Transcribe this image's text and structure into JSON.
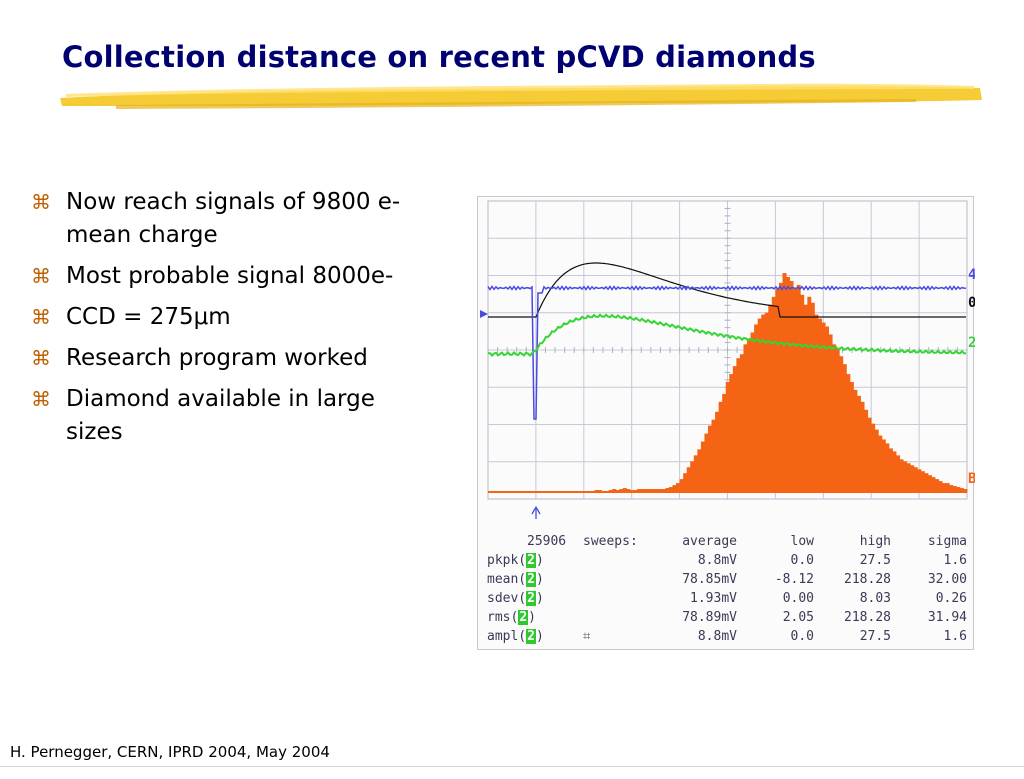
{
  "slide": {
    "title": "Collection distance on recent pCVD diamonds",
    "accent_color": "#f2c62c",
    "title_color": "#000070"
  },
  "bullets": {
    "marker_icon": "command-key-glyph",
    "items": [
      "Now reach signals of 9800 e- mean charge",
      "Most probable signal 8000e-",
      "CCD = 275μm",
      "Research program worked",
      "Diamond available in large sizes"
    ]
  },
  "scope": {
    "channel_markers": [
      "4",
      "0",
      "2",
      "B"
    ],
    "trace_colors": {
      "ch4": "#4a4ae0",
      "ch2": "#34d534",
      "ref": "#101010",
      "histogram": "#f46414"
    },
    "readout": {
      "header": [
        "25906",
        "sweeps:",
        "average",
        "low",
        "high",
        "sigma"
      ],
      "rows": [
        {
          "label": "pkpk(",
          "ch": "2",
          "close": ")",
          "avg": "8.8mV",
          "low": "0.0",
          "high": "27.5",
          "sigma": "1.6"
        },
        {
          "label": "mean(",
          "ch": "2",
          "close": ")",
          "avg": "78.85mV",
          "low": "-8.12",
          "high": "218.28",
          "sigma": "32.00"
        },
        {
          "label": "sdev(",
          "ch": "2",
          "close": ")",
          "avg": "1.93mV",
          "low": "0.00",
          "high": "8.03",
          "sigma": "0.26"
        },
        {
          "label": "rms(",
          "ch": "2",
          "close": ")",
          "avg": "78.89mV",
          "low": "2.05",
          "high": "218.28",
          "sigma": "31.94"
        },
        {
          "label": "ampl(",
          "ch": "2",
          "close": ")",
          "avg": "8.8mV",
          "low": "0.0",
          "high": "27.5",
          "sigma": "1.6"
        }
      ]
    },
    "histogram_counts": [
      2,
      2,
      2,
      2,
      2,
      2,
      2,
      2,
      2,
      2,
      2,
      2,
      2,
      2,
      2,
      2,
      2,
      2,
      2,
      2,
      2,
      2,
      2,
      2,
      2,
      2,
      2,
      2,
      2,
      2,
      3,
      3,
      2,
      2,
      3,
      4,
      3,
      4,
      5,
      4,
      3,
      3,
      4,
      4,
      4,
      4,
      4,
      4,
      4,
      4,
      5,
      6,
      8,
      10,
      14,
      20,
      26,
      32,
      38,
      44,
      52,
      60,
      68,
      74,
      82,
      92,
      100,
      112,
      120,
      128,
      136,
      140,
      150,
      156,
      162,
      170,
      176,
      180,
      182,
      190,
      198,
      206,
      212,
      222,
      218,
      214,
      206,
      210,
      200,
      190,
      198,
      192,
      180,
      176,
      172,
      168,
      160,
      150,
      146,
      138,
      130,
      120,
      112,
      104,
      98,
      92,
      84,
      76,
      70,
      64,
      58,
      54,
      50,
      45,
      42,
      38,
      34,
      32,
      30,
      28,
      26,
      24,
      22,
      20,
      18,
      16,
      14,
      12,
      10,
      10,
      8,
      7,
      6,
      5,
      4
    ]
  },
  "footer": {
    "text": "H. Pernegger, CERN, IPRD 2004, May 2004"
  }
}
